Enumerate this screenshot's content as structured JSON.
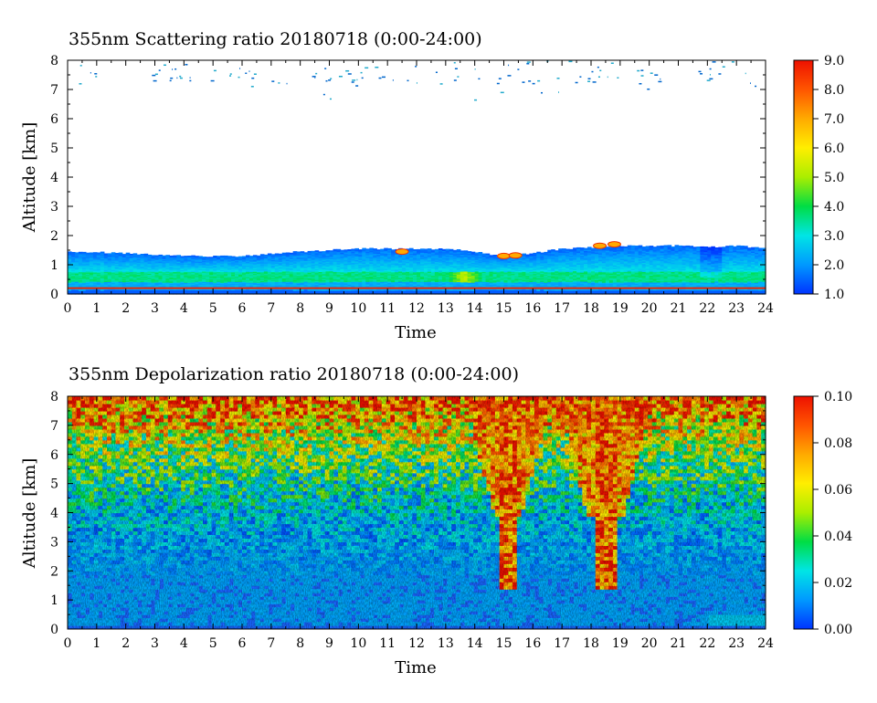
{
  "chart_data": [
    {
      "type": "heatmap",
      "title": "355nm Scattering ratio  20180718 (0:00-24:00)",
      "xlabel": "Time",
      "ylabel": "Altitude [km]",
      "xlim": [
        0,
        24
      ],
      "ylim": [
        0,
        8
      ],
      "x_ticks": [
        "0",
        "1",
        "2",
        "3",
        "4",
        "5",
        "6",
        "7",
        "8",
        "9",
        "10",
        "11",
        "12",
        "13",
        "14",
        "15",
        "16",
        "17",
        "18",
        "19",
        "20",
        "21",
        "22",
        "23",
        "24"
      ],
      "y_ticks": [
        "0",
        "1",
        "2",
        "3",
        "4",
        "5",
        "6",
        "7",
        "8"
      ],
      "colorbar": {
        "range": [
          1.0,
          9.0
        ],
        "ticks": [
          "1.0",
          "2.0",
          "3.0",
          "4.0",
          "5.0",
          "6.0",
          "7.0",
          "8.0",
          "9.0"
        ],
        "colormap": [
          "#0033ff",
          "#0099ff",
          "#00e5e5",
          "#00dd44",
          "#aaee00",
          "#ffee00",
          "#ffaa00",
          "#ff5500",
          "#ee1100"
        ]
      },
      "features": {
        "boundary_layer_top_km": [
          [
            0,
            1.45
          ],
          [
            2,
            1.4
          ],
          [
            4,
            1.3
          ],
          [
            6,
            1.3
          ],
          [
            8,
            1.45
          ],
          [
            10,
            1.55
          ],
          [
            12,
            1.55
          ],
          [
            13,
            1.55
          ],
          [
            14,
            1.45
          ],
          [
            15,
            1.3
          ],
          [
            16,
            1.4
          ],
          [
            17,
            1.55
          ],
          [
            18,
            1.6
          ],
          [
            19,
            1.65
          ],
          [
            20,
            1.65
          ],
          [
            21,
            1.65
          ],
          [
            22,
            1.6
          ],
          [
            23,
            1.65
          ],
          [
            24,
            1.55
          ]
        ],
        "aerosol_core_km": [
          0.4,
          0.75
        ],
        "surface_line_km": 0.2,
        "max_value_region_time_h": [
          13.0,
          14.3
        ]
      }
    },
    {
      "type": "heatmap",
      "title": "355nm Depolarization ratio  20180718 (0:00-24:00)",
      "xlabel": "Time",
      "ylabel": "Altitude [km]",
      "xlim": [
        0,
        24
      ],
      "ylim": [
        0,
        8
      ],
      "x_ticks": [
        "0",
        "1",
        "2",
        "3",
        "4",
        "5",
        "6",
        "7",
        "8",
        "9",
        "10",
        "11",
        "12",
        "13",
        "14",
        "15",
        "16",
        "17",
        "18",
        "19",
        "20",
        "21",
        "22",
        "23",
        "24"
      ],
      "y_ticks": [
        "0",
        "1",
        "2",
        "3",
        "4",
        "5",
        "6",
        "7",
        "8"
      ],
      "colorbar": {
        "range": [
          0.0,
          0.1
        ],
        "ticks": [
          "0.00",
          "0.02",
          "0.04",
          "0.06",
          "0.08",
          "0.10"
        ],
        "colormap": [
          "#0033ff",
          "#0099ff",
          "#00e5e5",
          "#00dd44",
          "#aaee00",
          "#ffee00",
          "#ffaa00",
          "#ff5500",
          "#ee1100"
        ]
      },
      "features": {
        "boundary_layer_top_km": 1.9,
        "high_depol_columns_time_h": [
          [
            14.9,
            15.4
          ],
          [
            18.1,
            18.9
          ]
        ],
        "high_depol_columns_bottom_km": 1.4,
        "noisy_layer_above_km": 5.0
      }
    }
  ]
}
